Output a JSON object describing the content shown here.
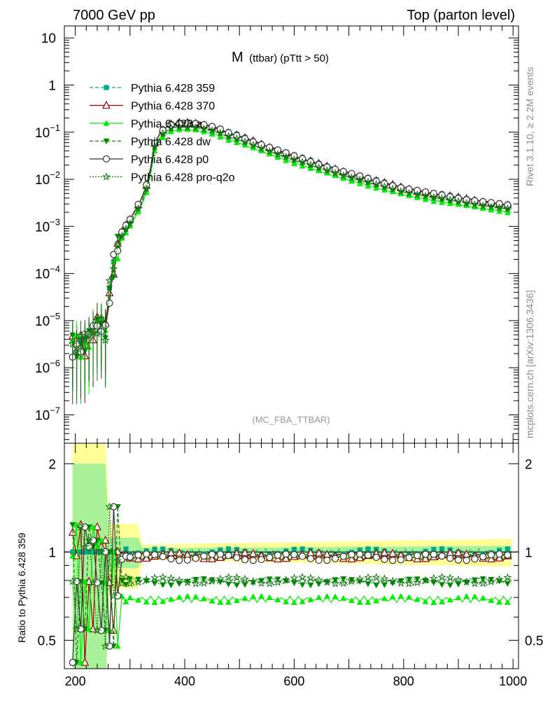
{
  "header": {
    "left": "7000 GeV pp",
    "right": "Top (parton level)"
  },
  "side": {
    "rivet": "Rivet 3.1.10, ≥ 2.2M events",
    "mcplots": "mcplots.cern.ch [arXiv:1306.3436]"
  },
  "chart_data": {
    "type": "line",
    "title": "M (ttbar) (pTtt > 50)",
    "title_main": "M",
    "title_sub": "(ttbar) (pTtt > 50)",
    "analysis_label": "(MC_FBA_TTBAR)",
    "xlabel": "",
    "xlim": [
      180,
      1010
    ],
    "x_ticks": [
      "200",
      "400",
      "600",
      "800",
      "1000"
    ],
    "upper": {
      "yscale": "log",
      "ylim": [
        2.5e-08,
        18
      ],
      "y_ticks": [
        {
          "value": 10,
          "base": "10",
          "exp": ""
        },
        {
          "value": 1,
          "base": "1",
          "exp": ""
        },
        {
          "value": 0.1,
          "base": "10",
          "exp": "−1"
        },
        {
          "value": 0.01,
          "base": "10",
          "exp": "−2"
        },
        {
          "value": 0.001,
          "base": "10",
          "exp": "−3"
        },
        {
          "value": 0.0001,
          "base": "10",
          "exp": "−4"
        },
        {
          "value": 1e-05,
          "base": "10",
          "exp": "−5"
        },
        {
          "value": 1e-06,
          "base": "10",
          "exp": "−6"
        },
        {
          "value": 1e-07,
          "base": "10",
          "exp": "−7"
        }
      ]
    },
    "ratio": {
      "ylabel": "Ratio to Pythia 6.428 359",
      "yscale": "log",
      "ylim": [
        0.4,
        2.35
      ],
      "y_ticks": [
        "0.5",
        "1",
        "2"
      ],
      "reference_line": 1
    },
    "legend_position": "top-left",
    "series": [
      {
        "name": "Pythia 6.428 359",
        "color": "#00aa88",
        "marker": "square",
        "dash": "dashed",
        "y_scale": 1.0,
        "ratio": 1.0
      },
      {
        "name": "Pythia 6.428 370",
        "color": "#990000",
        "marker": "open-triangle",
        "dash": "solid",
        "y_scale": 0.97,
        "ratio": 0.97
      },
      {
        "name": "Pythia 6.428 a",
        "color": "#00ee00",
        "marker": "triangle",
        "dash": "solid",
        "y_scale": 0.69,
        "ratio": 0.69
      },
      {
        "name": "Pythia 6.428 dw",
        "color": "#008800",
        "marker": "inverted-triangle",
        "dash": "dashed",
        "y_scale": 0.79,
        "ratio": 0.79
      },
      {
        "name": "Pythia 6.428 p0",
        "color": "#333333",
        "marker": "open-circle",
        "dash": "solid",
        "y_scale": 0.96,
        "ratio": 0.96
      },
      {
        "name": "Pythia 6.428 pro-q2o",
        "color": "#117711",
        "marker": "open-star",
        "dash": "dotted",
        "y_scale": 0.8,
        "ratio": 0.8
      }
    ],
    "reference_shape": {
      "x": [
        195,
        205,
        215,
        225,
        235,
        245,
        255,
        265,
        275,
        285,
        295,
        305,
        315,
        325,
        335,
        345,
        355,
        365,
        375,
        385,
        400,
        420,
        440,
        460,
        480,
        500,
        550,
        600,
        650,
        700,
        750,
        800,
        850,
        900,
        950,
        1000
      ],
      "y": [
        4e-06,
        4e-06,
        4e-06,
        5e-06,
        8e-06,
        1.2e-05,
        8e-06,
        9e-05,
        0.00035,
        0.0008,
        0.0012,
        0.0018,
        0.003,
        0.005,
        0.012,
        0.06,
        0.1,
        0.13,
        0.15,
        0.16,
        0.165,
        0.16,
        0.145,
        0.125,
        0.1,
        0.085,
        0.052,
        0.032,
        0.021,
        0.014,
        0.0095,
        0.0068,
        0.0052,
        0.0042,
        0.0034,
        0.0028
      ]
    }
  }
}
